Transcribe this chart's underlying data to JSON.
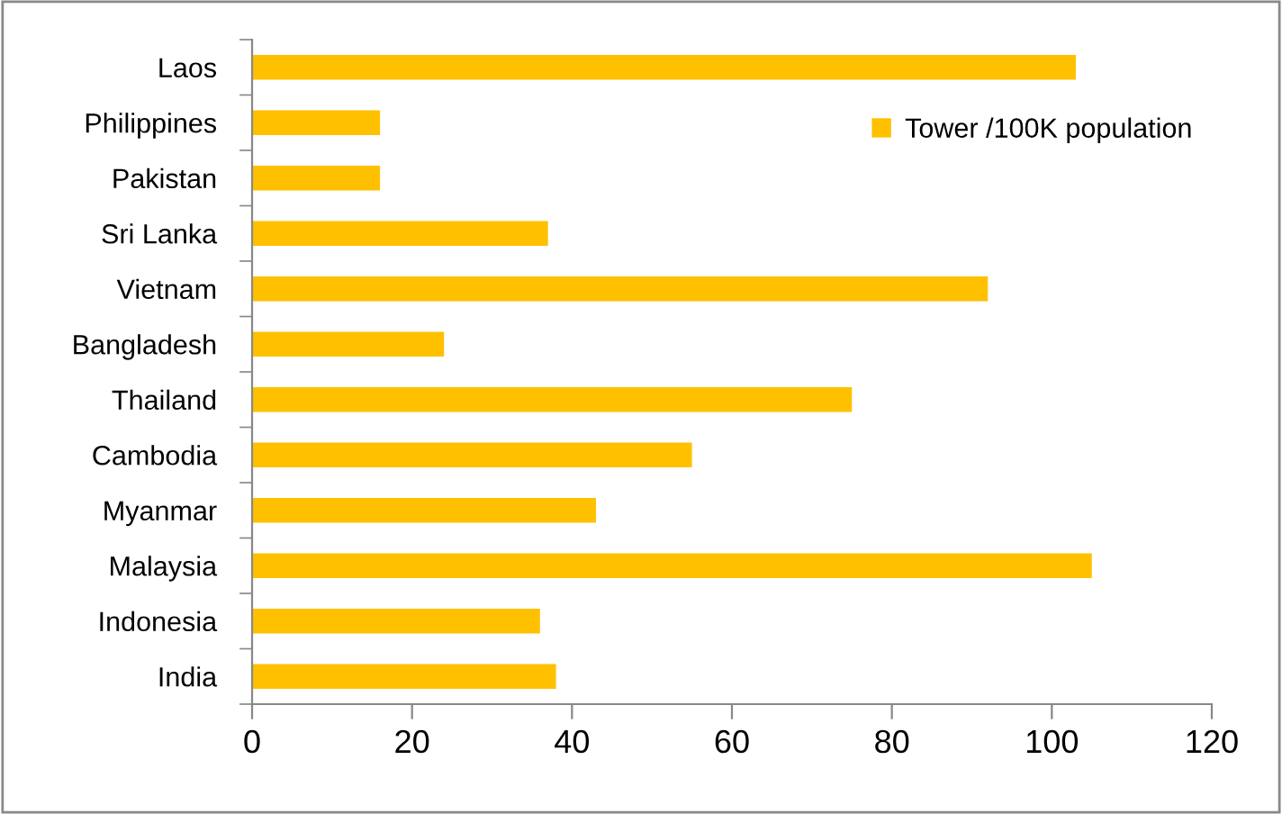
{
  "chart_data": {
    "type": "bar",
    "orientation": "horizontal",
    "categories": [
      "Laos",
      "Philippines",
      "Pakistan",
      "Sri Lanka",
      "Vietnam",
      "Bangladesh",
      "Thailand",
      "Cambodia",
      "Myanmar",
      "Malaysia",
      "Indonesia",
      "India"
    ],
    "series": [
      {
        "name": "Tower /100K population",
        "color": "#ffc000",
        "values": [
          103,
          16,
          16,
          37,
          92,
          24,
          75,
          55,
          43,
          105,
          36,
          38
        ]
      }
    ],
    "xlim": [
      0,
      120
    ],
    "xticks": [
      0,
      20,
      40,
      60,
      80,
      100,
      120
    ],
    "grid": false,
    "legend": "top right"
  }
}
